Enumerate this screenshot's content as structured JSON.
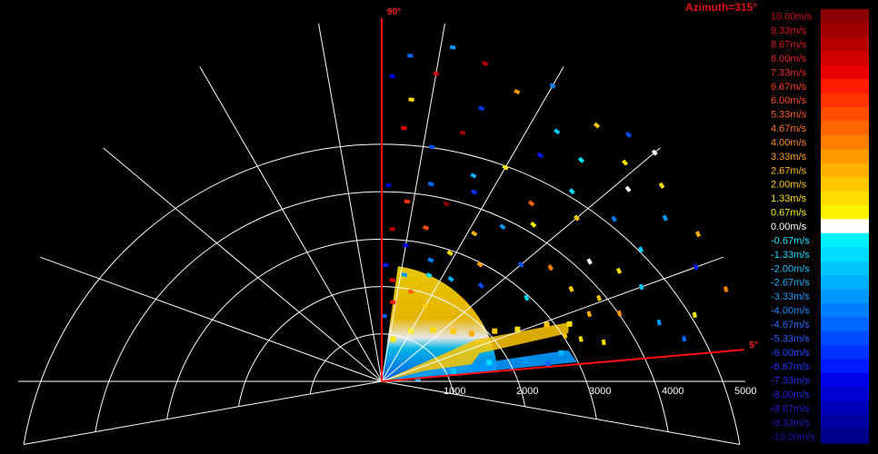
{
  "chart_data": {
    "type": "scatter",
    "title": "Azimuth=315°",
    "xlabel": "",
    "ylabel": "",
    "range_ticks": [
      "1000",
      "2000",
      "3000",
      "4000",
      "5000"
    ],
    "range_max": 5000,
    "elevation_limits": [
      {
        "label": "90°",
        "angle_deg": 90
      },
      {
        "label": "5°",
        "angle_deg": 5
      }
    ],
    "sector_deg": [
      5,
      90
    ],
    "grid": true,
    "radial_lines_deg": [
      -10,
      0,
      5,
      20,
      40,
      60,
      80,
      90,
      100,
      120,
      140,
      160,
      180
    ],
    "colorbar": [
      {
        "label": "10.00m/s",
        "value": 10.0,
        "color": "#8b0000",
        "text_color": "#cc1111"
      },
      {
        "label": "9.33m/s",
        "value": 9.33,
        "color": "#a00000",
        "text_color": "#d41414"
      },
      {
        "label": "8.67m/s",
        "value": 8.67,
        "color": "#b80000",
        "text_color": "#dd1a1a"
      },
      {
        "label": "8.00m/s",
        "value": 8.0,
        "color": "#cf0000",
        "text_color": "#e52020"
      },
      {
        "label": "7.33m/s",
        "value": 7.33,
        "color": "#e80000",
        "text_color": "#ee2a2a"
      },
      {
        "label": "6.67m/s",
        "value": 6.67,
        "color": "#ff1a00",
        "text_color": "#ff3a1a"
      },
      {
        "label": "6.00m/s",
        "value": 6.0,
        "color": "#ff3300",
        "text_color": "#ff4a20"
      },
      {
        "label": "5.33m/s",
        "value": 5.33,
        "color": "#ff4d00",
        "text_color": "#ff5a20"
      },
      {
        "label": "4.67m/s",
        "value": 4.67,
        "color": "#ff6600",
        "text_color": "#ff7020"
      },
      {
        "label": "4.00m/s",
        "value": 4.0,
        "color": "#ff8000",
        "text_color": "#ff8a20"
      },
      {
        "label": "3.33m/s",
        "value": 3.33,
        "color": "#ff9900",
        "text_color": "#ffa020"
      },
      {
        "label": "2.67m/s",
        "value": 2.67,
        "color": "#ffb000",
        "text_color": "#ffb520"
      },
      {
        "label": "2.00m/s",
        "value": 2.0,
        "color": "#ffc800",
        "text_color": "#ffc820"
      },
      {
        "label": "1.33m/s",
        "value": 1.33,
        "color": "#ffdd00",
        "text_color": "#ffdd20"
      },
      {
        "label": "0.67m/s",
        "value": 0.67,
        "color": "#fff000",
        "text_color": "#fff020"
      },
      {
        "label": "0.00m/s",
        "value": 0.0,
        "color": "#ffffff",
        "text_color": "#ffffff"
      },
      {
        "label": "-0.67m/s",
        "value": -0.67,
        "color": "#00f0ff",
        "text_color": "#20e8ff"
      },
      {
        "label": "-1.33m/s",
        "value": -1.33,
        "color": "#00ddff",
        "text_color": "#20d8ff"
      },
      {
        "label": "-2.00m/s",
        "value": -2.0,
        "color": "#00c8ff",
        "text_color": "#20c4ff"
      },
      {
        "label": "-2.67m/s",
        "value": -2.67,
        "color": "#00b0ff",
        "text_color": "#20b0ff"
      },
      {
        "label": "-3.33m/s",
        "value": -3.33,
        "color": "#0099ff",
        "text_color": "#209cff"
      },
      {
        "label": "-4.00m/s",
        "value": -4.0,
        "color": "#0080ff",
        "text_color": "#2088ff"
      },
      {
        "label": "-4.67m/s",
        "value": -4.67,
        "color": "#0066ff",
        "text_color": "#2070ff"
      },
      {
        "label": "-5.33m/s",
        "value": -5.33,
        "color": "#004dff",
        "text_color": "#205cff"
      },
      {
        "label": "-6.00m/s",
        "value": -6.0,
        "color": "#0033ff",
        "text_color": "#2048ff"
      },
      {
        "label": "-6.67m/s",
        "value": -6.67,
        "color": "#001aff",
        "text_color": "#2038ff"
      },
      {
        "label": "-7.33m/s",
        "value": -7.33,
        "color": "#0000e8",
        "text_color": "#2828f0"
      },
      {
        "label": "-8.00m/s",
        "value": -8.0,
        "color": "#0000cf",
        "text_color": "#2424e0"
      },
      {
        "label": "-8.67m/s",
        "value": -8.67,
        "color": "#0000b8",
        "text_color": "#2020d0"
      },
      {
        "label": "-9.33m/s",
        "value": -9.33,
        "color": "#0000a0",
        "text_color": "#1c1cc0"
      },
      {
        "label": "-10.00m/s",
        "value": -10.0,
        "color": "#00008b",
        "text_color": "#1818b0"
      }
    ],
    "series": [
      {
        "kind": "dense_core",
        "points": [
          {
            "r": 600,
            "deg": 75,
            "v": 1.0
          },
          {
            "r": 800,
            "deg": 60,
            "v": 0.7
          },
          {
            "r": 1000,
            "deg": 45,
            "v": 1.3
          },
          {
            "r": 1200,
            "deg": 35,
            "v": 2.0
          },
          {
            "r": 1400,
            "deg": 28,
            "v": 2.7
          },
          {
            "r": 1700,
            "deg": 24,
            "v": 2.0
          },
          {
            "r": 2000,
            "deg": 21,
            "v": 1.3
          },
          {
            "r": 2400,
            "deg": 19,
            "v": 2.0
          },
          {
            "r": 2700,
            "deg": 17,
            "v": 1.3
          },
          {
            "r": 500,
            "deg": 5,
            "v": -2.7
          },
          {
            "r": 1000,
            "deg": 8,
            "v": -2.0
          },
          {
            "r": 1500,
            "deg": 10,
            "v": -1.3
          },
          {
            "r": 2000,
            "deg": 8,
            "v": -3.3
          },
          {
            "r": 2500,
            "deg": 9,
            "v": -2.7
          },
          {
            "r": 1800,
            "deg": 6,
            "v": -4.0
          },
          {
            "r": 2300,
            "deg": 6,
            "v": -4.7
          }
        ]
      },
      {
        "kind": "scattered_bins",
        "points": [
          {
            "r": 4200,
            "deg": 88,
            "v": -7.3
          },
          {
            "r": 4500,
            "deg": 85,
            "v": -4.7
          },
          {
            "r": 4300,
            "deg": 80,
            "v": 8.0
          },
          {
            "r": 4700,
            "deg": 78,
            "v": -3.3
          },
          {
            "r": 3900,
            "deg": 84,
            "v": 1.3
          },
          {
            "r": 4600,
            "deg": 72,
            "v": 8.7
          },
          {
            "r": 4000,
            "deg": 70,
            "v": -6.0
          },
          {
            "r": 4400,
            "deg": 65,
            "v": 3.3
          },
          {
            "r": 4700,
            "deg": 60,
            "v": -4.0
          },
          {
            "r": 4200,
            "deg": 55,
            "v": -2.0
          },
          {
            "r": 4600,
            "deg": 50,
            "v": 2.0
          },
          {
            "r": 4800,
            "deg": 45,
            "v": -5.3
          },
          {
            "r": 4900,
            "deg": 40,
            "v": 0.0
          },
          {
            "r": 4700,
            "deg": 35,
            "v": 1.3
          },
          {
            "r": 4500,
            "deg": 30,
            "v": -3.3
          },
          {
            "r": 4800,
            "deg": 25,
            "v": 2.7
          },
          {
            "r": 4600,
            "deg": 20,
            "v": -6.7
          },
          {
            "r": 4900,
            "deg": 15,
            "v": 4.0
          },
          {
            "r": 4400,
            "deg": 12,
            "v": 0.7
          },
          {
            "r": 4200,
            "deg": 8,
            "v": -4.7
          },
          {
            "r": 3500,
            "deg": 85,
            "v": 7.3
          },
          {
            "r": 3300,
            "deg": 78,
            "v": -5.3
          },
          {
            "r": 3600,
            "deg": 72,
            "v": 9.3
          },
          {
            "r": 3100,
            "deg": 66,
            "v": -2.7
          },
          {
            "r": 3400,
            "deg": 60,
            "v": 0.7
          },
          {
            "r": 3800,
            "deg": 55,
            "v": -6.7
          },
          {
            "r": 3200,
            "deg": 50,
            "v": 4.7
          },
          {
            "r": 3700,
            "deg": 45,
            "v": -1.3
          },
          {
            "r": 3500,
            "deg": 40,
            "v": 2.0
          },
          {
            "r": 3900,
            "deg": 35,
            "v": -4.0
          },
          {
            "r": 3300,
            "deg": 30,
            "v": 0.0
          },
          {
            "r": 3600,
            "deg": 25,
            "v": 1.3
          },
          {
            "r": 3800,
            "deg": 20,
            "v": -2.0
          },
          {
            "r": 3400,
            "deg": 16,
            "v": 3.3
          },
          {
            "r": 3900,
            "deg": 12,
            "v": -3.3
          },
          {
            "r": 3100,
            "deg": 10,
            "v": 1.3
          },
          {
            "r": 2700,
            "deg": 88,
            "v": -8.0
          },
          {
            "r": 2500,
            "deg": 82,
            "v": 6.0
          },
          {
            "r": 2800,
            "deg": 76,
            "v": -4.7
          },
          {
            "r": 2600,
            "deg": 70,
            "v": 10.0
          },
          {
            "r": 2900,
            "deg": 64,
            "v": -6.0
          },
          {
            "r": 2400,
            "deg": 58,
            "v": 2.7
          },
          {
            "r": 2700,
            "deg": 52,
            "v": -3.3
          },
          {
            "r": 3000,
            "deg": 46,
            "v": 0.7
          },
          {
            "r": 2500,
            "deg": 40,
            "v": -5.3
          },
          {
            "r": 2800,
            "deg": 34,
            "v": 4.0
          },
          {
            "r": 2300,
            "deg": 30,
            "v": -1.3
          },
          {
            "r": 2900,
            "deg": 26,
            "v": 2.0
          },
          {
            "r": 2100,
            "deg": 86,
            "v": 8.7
          },
          {
            "r": 1900,
            "deg": 80,
            "v": -7.3
          },
          {
            "r": 2200,
            "deg": 74,
            "v": 5.3
          },
          {
            "r": 1800,
            "deg": 68,
            "v": -4.0
          },
          {
            "r": 2000,
            "deg": 62,
            "v": 1.3
          },
          {
            "r": 1700,
            "deg": 56,
            "v": -2.7
          },
          {
            "r": 2100,
            "deg": 50,
            "v": 3.3
          },
          {
            "r": 1900,
            "deg": 44,
            "v": -5.3
          },
          {
            "r": 1600,
            "deg": 88,
            "v": -6.7
          },
          {
            "r": 1400,
            "deg": 84,
            "v": 7.3
          },
          {
            "r": 1500,
            "deg": 78,
            "v": -3.3
          },
          {
            "r": 1300,
            "deg": 72,
            "v": 4.7
          },
          {
            "r": 1600,
            "deg": 66,
            "v": -1.3
          },
          {
            "r": 1200,
            "deg": 60,
            "v": 2.0
          },
          {
            "r": 1100,
            "deg": 82,
            "v": 6.7
          },
          {
            "r": 900,
            "deg": 88,
            "v": -4.7
          },
          {
            "r": 3000,
            "deg": 18,
            "v": 2.7
          },
          {
            "r": 3200,
            "deg": 21,
            "v": 2.0
          },
          {
            "r": 2600,
            "deg": 14,
            "v": 2.0
          },
          {
            "r": 2800,
            "deg": 12,
            "v": 1.3
          },
          {
            "r": 4000,
            "deg": 27,
            "v": -2.0
          },
          {
            "r": 4300,
            "deg": 38,
            "v": 0.0
          },
          {
            "r": 4100,
            "deg": 48,
            "v": -0.7
          },
          {
            "r": 4500,
            "deg": 42,
            "v": 1.3
          }
        ]
      }
    ]
  }
}
